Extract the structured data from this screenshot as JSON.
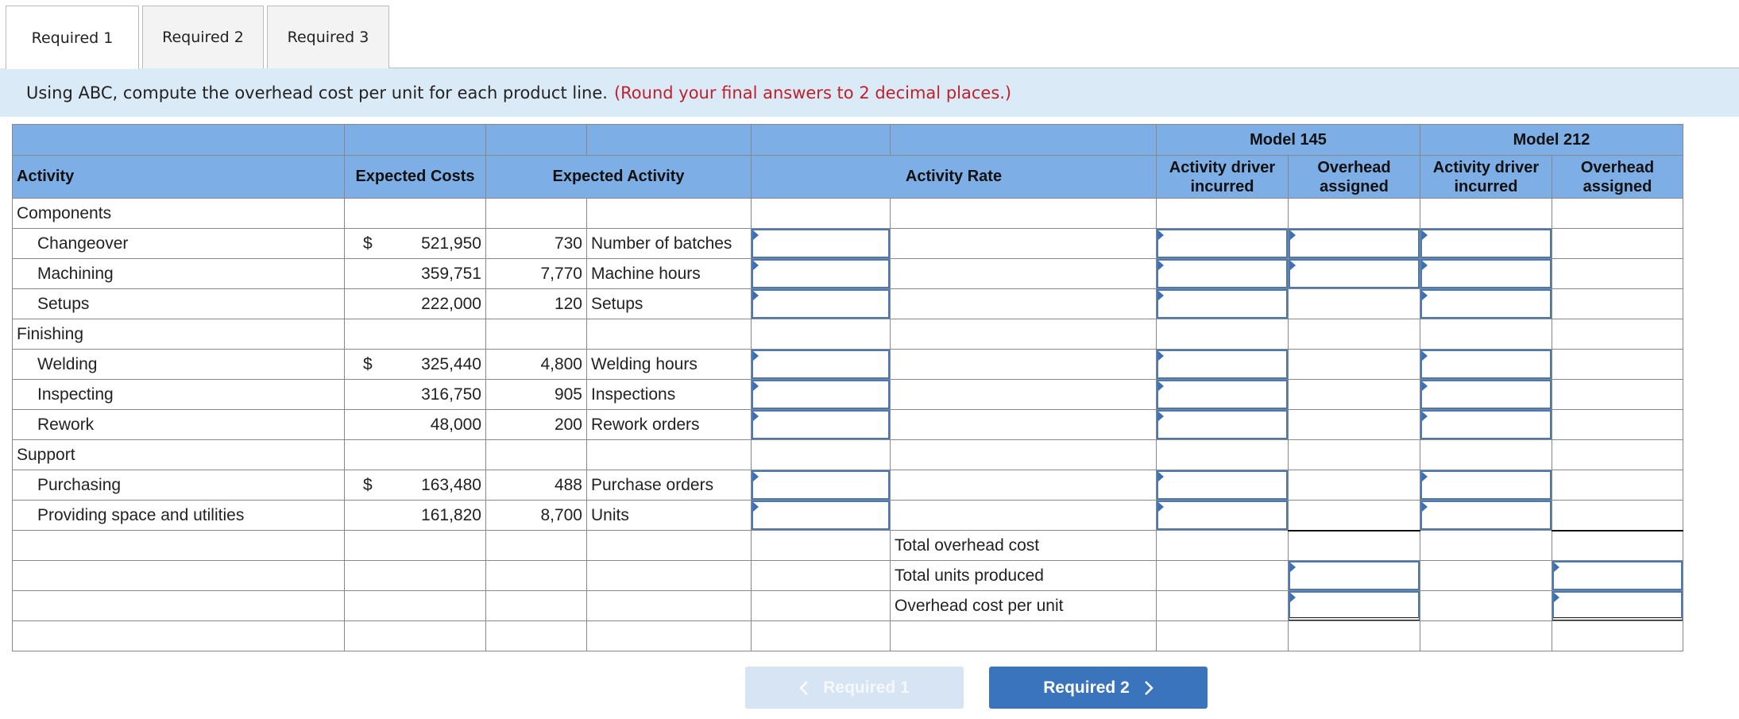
{
  "tabs": [
    "Required 1",
    "Required 2",
    "Required 3"
  ],
  "instruction": {
    "text": "Using ABC, compute the overhead cost per unit for each product line.",
    "note": "(Round your final answers to 2 decimal places.)"
  },
  "table": {
    "headers": {
      "activity": "Activity",
      "expected_costs": "Expected Costs",
      "expected_activity": "Expected Activity",
      "activity_rate": "Activity Rate",
      "models": [
        {
          "name": "Model 145",
          "columns": [
            "Activity driver incurred",
            "Overhead assigned"
          ]
        },
        {
          "name": "Model 212",
          "columns": [
            "Activity driver incurred",
            "Overhead assigned"
          ]
        }
      ]
    },
    "groups": [
      {
        "name": "Components",
        "rows": [
          {
            "activity": "Changeover",
            "currency": "$",
            "cost": "521,950",
            "quantity": "730",
            "driver": "Number of batches"
          },
          {
            "activity": "Machining",
            "cost": "359,751",
            "quantity": "7,770",
            "driver": "Machine hours"
          },
          {
            "activity": "Setups",
            "cost": "222,000",
            "quantity": "120",
            "driver": "Setups"
          }
        ]
      },
      {
        "name": "Finishing",
        "rows": [
          {
            "activity": "Welding",
            "currency": "$",
            "cost": "325,440",
            "quantity": "4,800",
            "driver": "Welding hours"
          },
          {
            "activity": "Inspecting",
            "cost": "316,750",
            "quantity": "905",
            "driver": "Inspections"
          },
          {
            "activity": "Rework",
            "cost": "48,000",
            "quantity": "200",
            "driver": "Rework orders"
          }
        ]
      },
      {
        "name": "Support",
        "rows": [
          {
            "activity": "Purchasing",
            "currency": "$",
            "cost": "163,480",
            "quantity": "488",
            "driver": "Purchase orders"
          },
          {
            "activity": "Providing space and utilities",
            "cost": "161,820",
            "quantity": "8,700",
            "driver": "Units"
          }
        ]
      }
    ],
    "totals": [
      "Total overhead cost",
      "Total units produced",
      "Overhead cost per unit"
    ]
  },
  "buttons": {
    "previous": "Required 1",
    "next": "Required 2"
  }
}
